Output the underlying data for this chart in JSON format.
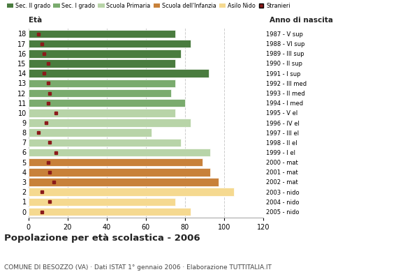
{
  "ages": [
    18,
    17,
    16,
    15,
    14,
    13,
    12,
    11,
    10,
    9,
    8,
    7,
    6,
    5,
    4,
    3,
    2,
    1,
    0
  ],
  "anni_nascita": [
    "1987 - V sup",
    "1988 - VI sup",
    "1989 - III sup",
    "1990 - II sup",
    "1991 - I sup",
    "1992 - III med",
    "1993 - II med",
    "1994 - I med",
    "1995 - V el",
    "1996 - IV el",
    "1997 - III el",
    "1998 - II el",
    "1999 - I el",
    "2000 - mat",
    "2001 - mat",
    "2002 - mat",
    "2003 - nido",
    "2004 - nido",
    "2005 - nido"
  ],
  "bar_values": [
    75,
    83,
    78,
    75,
    92,
    75,
    73,
    80,
    75,
    83,
    63,
    78,
    93,
    89,
    93,
    97,
    105,
    75,
    83
  ],
  "stranieri": [
    5,
    7,
    8,
    10,
    8,
    10,
    11,
    10,
    14,
    9,
    5,
    11,
    14,
    10,
    11,
    13,
    7,
    11,
    7
  ],
  "bar_colors": [
    "#4a7c3f",
    "#4a7c3f",
    "#4a7c3f",
    "#4a7c3f",
    "#4a7c3f",
    "#7aab6e",
    "#7aab6e",
    "#7aab6e",
    "#b8d4a8",
    "#b8d4a8",
    "#b8d4a8",
    "#b8d4a8",
    "#b8d4a8",
    "#c8813a",
    "#c8813a",
    "#c8813a",
    "#f5d990",
    "#f5d990",
    "#f5d990"
  ],
  "legend_labels": [
    "Sec. II grado",
    "Sec. I grado",
    "Scuola Primaria",
    "Scuola dell'Infanzia",
    "Asilo Nido",
    "Stranieri"
  ],
  "legend_colors": [
    "#4a7c3f",
    "#7aab6e",
    "#b8d4a8",
    "#c8813a",
    "#f5d990",
    "#8b1a1a"
  ],
  "title": "Popolazione per età scolastica - 2006",
  "subtitle": "COMUNE DI BESOZZO (VA) · Dati ISTAT 1° gennaio 2006 · Elaborazione TUTTITALIA.IT",
  "xlabel_eta": "Età",
  "xlabel_anno": "Anno di nascita",
  "xlim": [
    0,
    120
  ],
  "xticks": [
    0,
    20,
    40,
    60,
    80,
    100,
    120
  ],
  "stranieri_color": "#8b1a1a",
  "bg_color": "#ffffff",
  "grid_color": "#cccccc",
  "bar_height": 0.82
}
